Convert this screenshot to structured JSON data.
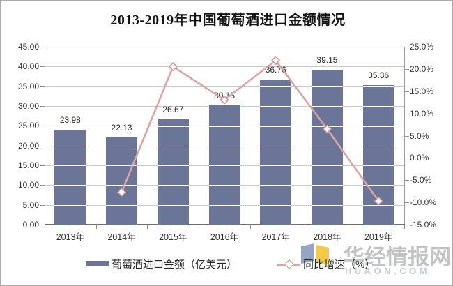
{
  "title": "2013-2019年中国葡萄酒进口金额情况",
  "colors": {
    "bar": "#6A7597",
    "line": "#D9A5A5",
    "marker_stroke": "#CD9898",
    "marker_fill": "#FFFFFF",
    "grid": "#C9C9C9"
  },
  "chart_data": {
    "type": "bar",
    "categories": [
      "2013年",
      "2014年",
      "2015年",
      "2016年",
      "2017年",
      "2018年",
      "2019年"
    ],
    "series": [
      {
        "name": "葡萄酒进口金额（亿美元）",
        "type": "bar",
        "values": [
          23.98,
          22.13,
          26.67,
          30.15,
          36.76,
          39.15,
          35.36
        ],
        "data_labels": [
          "23.98",
          "22.13",
          "26.67",
          "30.15",
          "36.76",
          "39.15",
          "35.36"
        ]
      },
      {
        "name": "同比增速（%）",
        "type": "line",
        "values": [
          null,
          -7.71,
          20.52,
          13.05,
          21.92,
          6.5,
          -9.68
        ]
      }
    ],
    "title": "2013-2019年中国葡萄酒进口金额情况",
    "left_axis": {
      "min": 0,
      "max": 45,
      "step": 5,
      "ticks": [
        "45.00",
        "40.00",
        "35.00",
        "30.00",
        "25.00",
        "20.00",
        "15.00",
        "10.00",
        "5.00",
        "0.00"
      ]
    },
    "right_axis": {
      "min": -15,
      "max": 25,
      "step": 5,
      "ticks": [
        "25.0%",
        "20.0%",
        "15.0%",
        "10.0%",
        "5.0%",
        "0.0%",
        "-5.0%",
        "-10.0%",
        "-15.0%"
      ]
    },
    "grid": true,
    "legend_position": "bottom"
  },
  "legend": {
    "items": [
      {
        "label": "葡萄酒进口金额（亿美元）",
        "swatch": "bar"
      },
      {
        "label": "同比增速（%）",
        "swatch": "line"
      }
    ]
  },
  "watermark": {
    "cn": "华经情报网",
    "en": "HUAON.COM"
  }
}
